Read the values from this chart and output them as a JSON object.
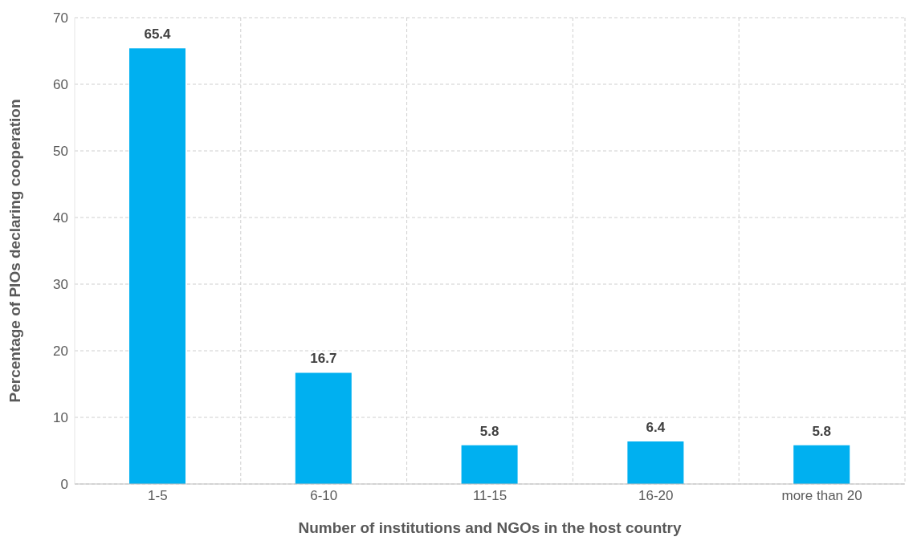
{
  "chart_data": {
    "type": "bar",
    "xlabel": "Number of institutions and NGOs in the host country",
    "ylabel": "Percentage of PIOs declaring cooperation",
    "categories": [
      "1-5",
      "6-10",
      "11-15",
      "16-20",
      "more than 20"
    ],
    "values": [
      65.4,
      16.7,
      5.8,
      6.4,
      5.8
    ],
    "color": "#00b0f0",
    "ylim": [
      0,
      70
    ],
    "yticks": [
      0,
      10,
      20,
      30,
      40,
      50,
      60,
      70
    ],
    "grid": true,
    "data_labels": true
  }
}
